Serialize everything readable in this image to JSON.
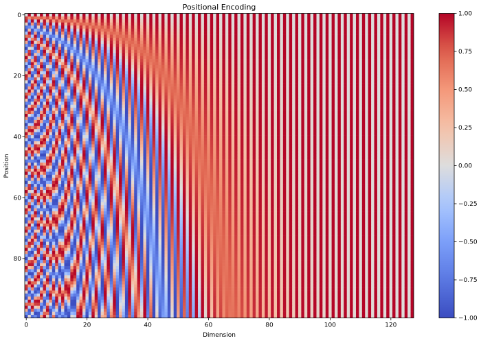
{
  "chart_data": {
    "type": "heatmap",
    "title": "Positional Encoding",
    "xlabel": "Dimension",
    "ylabel": "Position",
    "rows": 100,
    "cols": 128,
    "generator": "sinusoidal positional encoding: even dims sin(pos/10000^(2i/128)), odd dims cos(pos/10000^(2i/128))",
    "d_model": 128,
    "base": 10000,
    "colormap": "coolwarm",
    "vmin": -1.0,
    "vmax": 1.0,
    "xticks": [
      "0",
      "20",
      "40",
      "60",
      "80",
      "100",
      "120"
    ],
    "xtick_values": [
      0,
      20,
      40,
      60,
      80,
      100,
      120
    ],
    "yticks": [
      "0",
      "20",
      "40",
      "60",
      "80"
    ],
    "ytick_values": [
      0,
      20,
      40,
      60,
      80
    ],
    "colorbar_ticks": [
      "1.00",
      "0.75",
      "0.50",
      "0.25",
      "0.00",
      "−0.25",
      "−0.50",
      "−0.75",
      "−1.00"
    ],
    "colorbar_values": [
      1,
      0.75,
      0.5,
      0.25,
      0,
      -0.25,
      -0.5,
      -0.75,
      -1
    ],
    "grid": false
  }
}
